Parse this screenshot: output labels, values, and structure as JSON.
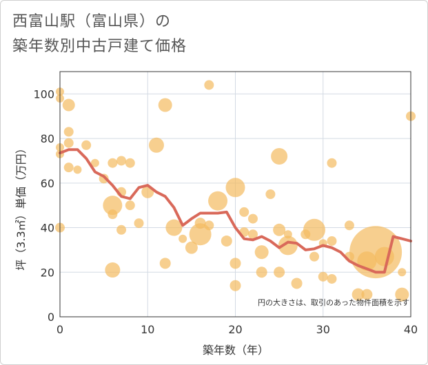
{
  "title_lines": [
    "西富山駅（富山県）の",
    "築年数別中古戸建て価格"
  ],
  "colors": {
    "bubble": "#f3bb5f",
    "line": "#d9695a",
    "grid": "#d3dae3",
    "plot_border": "#333333"
  },
  "chart_data": {
    "type": "scatter",
    "xlabel": "築年数（年）",
    "ylabel": "坪（3.3㎡）単価（万円）",
    "xlim": [
      0,
      40
    ],
    "ylim": [
      0,
      110
    ],
    "x_ticks": [
      0,
      10,
      20,
      30,
      40
    ],
    "y_ticks": [
      0,
      20,
      40,
      60,
      80,
      100
    ],
    "grid": true,
    "annotation": "円の大きさは、取引のあった物件面積を示す",
    "bubbles": [
      {
        "x": 0,
        "y": 101,
        "s": 6
      },
      {
        "x": 0,
        "y": 98,
        "s": 6
      },
      {
        "x": 0,
        "y": 76,
        "s": 6
      },
      {
        "x": 0,
        "y": 73,
        "s": 6
      },
      {
        "x": 0,
        "y": 40,
        "s": 7
      },
      {
        "x": 1,
        "y": 95,
        "s": 9
      },
      {
        "x": 1,
        "y": 83,
        "s": 7
      },
      {
        "x": 1,
        "y": 78,
        "s": 7
      },
      {
        "x": 1,
        "y": 67,
        "s": 7
      },
      {
        "x": 2,
        "y": 66,
        "s": 6
      },
      {
        "x": 3,
        "y": 77,
        "s": 7
      },
      {
        "x": 4,
        "y": 69,
        "s": 6
      },
      {
        "x": 5,
        "y": 62,
        "s": 7
      },
      {
        "x": 6,
        "y": 69,
        "s": 7
      },
      {
        "x": 6,
        "y": 50,
        "s": 14
      },
      {
        "x": 6,
        "y": 46,
        "s": 7
      },
      {
        "x": 6,
        "y": 21,
        "s": 11
      },
      {
        "x": 7,
        "y": 70,
        "s": 7
      },
      {
        "x": 7,
        "y": 56,
        "s": 7
      },
      {
        "x": 7,
        "y": 39,
        "s": 7
      },
      {
        "x": 8,
        "y": 69,
        "s": 7
      },
      {
        "x": 8,
        "y": 50,
        "s": 7
      },
      {
        "x": 9,
        "y": 42,
        "s": 7
      },
      {
        "x": 10,
        "y": 56,
        "s": 9
      },
      {
        "x": 11,
        "y": 77,
        "s": 11
      },
      {
        "x": 12,
        "y": 95,
        "s": 10
      },
      {
        "x": 12,
        "y": 24,
        "s": 8
      },
      {
        "x": 13,
        "y": 40,
        "s": 12
      },
      {
        "x": 14,
        "y": 35,
        "s": 6
      },
      {
        "x": 15,
        "y": 31,
        "s": 9
      },
      {
        "x": 16,
        "y": 42,
        "s": 8
      },
      {
        "x": 16,
        "y": 37,
        "s": 16
      },
      {
        "x": 17,
        "y": 104,
        "s": 7
      },
      {
        "x": 17,
        "y": 41,
        "s": 7
      },
      {
        "x": 18,
        "y": 52,
        "s": 14
      },
      {
        "x": 19,
        "y": 34,
        "s": 8
      },
      {
        "x": 20,
        "y": 58,
        "s": 14
      },
      {
        "x": 20,
        "y": 24,
        "s": 8
      },
      {
        "x": 20,
        "y": 14,
        "s": 8
      },
      {
        "x": 21,
        "y": 47,
        "s": 7
      },
      {
        "x": 21,
        "y": 38,
        "s": 7
      },
      {
        "x": 22,
        "y": 44,
        "s": 7
      },
      {
        "x": 22,
        "y": 37,
        "s": 7
      },
      {
        "x": 23,
        "y": 29,
        "s": 10
      },
      {
        "x": 23,
        "y": 20,
        "s": 8
      },
      {
        "x": 24,
        "y": 55,
        "s": 7
      },
      {
        "x": 25,
        "y": 72,
        "s": 12
      },
      {
        "x": 25,
        "y": 39,
        "s": 9
      },
      {
        "x": 25,
        "y": 20,
        "s": 8
      },
      {
        "x": 26,
        "y": 32,
        "s": 14
      },
      {
        "x": 26,
        "y": 37,
        "s": 6
      },
      {
        "x": 27,
        "y": 15,
        "s": 8
      },
      {
        "x": 28,
        "y": 37,
        "s": 7
      },
      {
        "x": 29,
        "y": 39,
        "s": 16
      },
      {
        "x": 29,
        "y": 27,
        "s": 7
      },
      {
        "x": 30,
        "y": 18,
        "s": 7
      },
      {
        "x": 30,
        "y": 33,
        "s": 6
      },
      {
        "x": 31,
        "y": 69,
        "s": 7
      },
      {
        "x": 31,
        "y": 34,
        "s": 7
      },
      {
        "x": 31,
        "y": 17,
        "s": 7
      },
      {
        "x": 33,
        "y": 41,
        "s": 7
      },
      {
        "x": 33,
        "y": 27,
        "s": 7
      },
      {
        "x": 34,
        "y": 10,
        "s": 9
      },
      {
        "x": 35,
        "y": 25,
        "s": 14
      },
      {
        "x": 35,
        "y": 10,
        "s": 8
      },
      {
        "x": 36,
        "y": 29,
        "s": 38
      },
      {
        "x": 37,
        "y": 27,
        "s": 14
      },
      {
        "x": 39,
        "y": 20,
        "s": 6
      },
      {
        "x": 39,
        "y": 10,
        "s": 10
      },
      {
        "x": 40,
        "y": 90,
        "s": 7
      }
    ],
    "series": [
      {
        "x": [
          0,
          1,
          2,
          3,
          4,
          5,
          6,
          7,
          8,
          9,
          10,
          11,
          12,
          13,
          14,
          15,
          16,
          17,
          18,
          19,
          20,
          21,
          22,
          23,
          24,
          25,
          26,
          27,
          28,
          29,
          30,
          31,
          32,
          33,
          34,
          35,
          36,
          37,
          38,
          39,
          40
        ],
        "y": [
          73.5,
          75,
          75,
          71,
          65,
          63,
          59,
          54,
          53,
          58,
          59,
          56,
          54,
          49,
          41,
          44,
          46.5,
          46.5,
          46.5,
          47,
          40,
          35,
          34.5,
          36,
          34,
          31,
          33.5,
          33,
          30,
          30.5,
          32,
          31,
          29,
          25,
          23,
          21.5,
          20,
          20,
          36,
          35,
          34
        ]
      }
    ]
  }
}
